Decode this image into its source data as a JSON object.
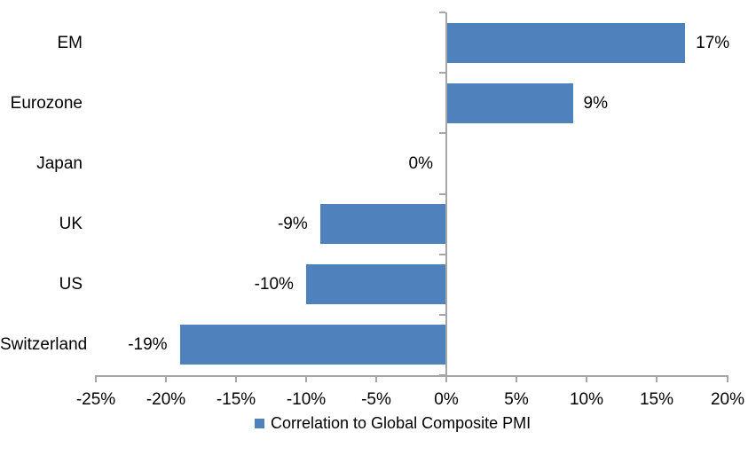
{
  "chart_data": {
    "type": "bar",
    "orientation": "horizontal",
    "title": "",
    "categories": [
      "EM",
      "Eurozone",
      "Japan",
      "UK",
      "US",
      "Switzerland"
    ],
    "values": [
      17,
      9,
      0,
      -9,
      -10,
      -19
    ],
    "value_labels": [
      "17%",
      "9%",
      "0%",
      "-9%",
      "-10%",
      "-19%"
    ],
    "xlim": [
      -25,
      20
    ],
    "x_ticks": [
      -25,
      -20,
      -15,
      -10,
      -5,
      0,
      5,
      10,
      15,
      20
    ],
    "x_tick_labels": [
      "-25%",
      "-20%",
      "-15%",
      "-10%",
      "-5%",
      "0%",
      "5%",
      "10%",
      "15%",
      "20%"
    ],
    "grid": false,
    "legend": "Correlation to Global Composite PMI",
    "legend_position": "bottom"
  },
  "colors": {
    "bar": "#4F81BD",
    "axis": "#A6A6A6",
    "text": "#000000",
    "background": "#FFFFFF"
  }
}
